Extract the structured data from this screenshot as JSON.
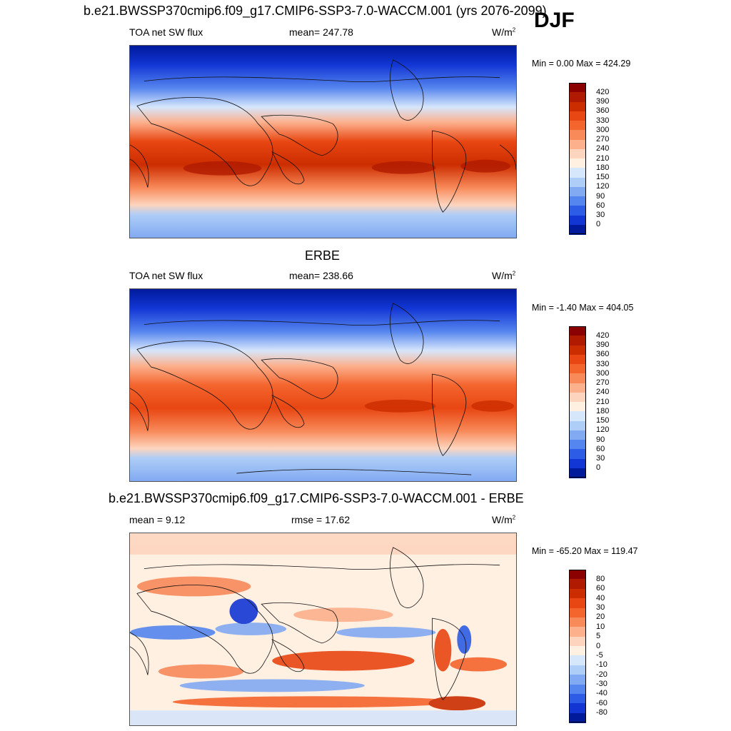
{
  "season": "DJF",
  "panel1": {
    "title": "b.e21.BWSSP370cmip6.f09_g17.CMIP6-SSP3-7.0-WACCM.001 (yrs 2076-2099)",
    "left_label": "TOA net SW flux",
    "center_label": "mean= 247.78",
    "units": "W/m",
    "units_sup": "2",
    "minmax": "Min =   0.00 Max = 424.29"
  },
  "panel2": {
    "title": "ERBE",
    "left_label": "TOA net SW flux",
    "center_label": "mean= 238.66",
    "units": "W/m",
    "units_sup": "2",
    "minmax": "Min =  -1.40 Max = 404.05"
  },
  "panel3": {
    "title": "b.e21.BWSSP370cmip6.f09_g17.CMIP6-SSP3-7.0-WACCM.001 - ERBE",
    "left_label": "mean =   9.12",
    "center_label": "rmse =  17.62",
    "units": "W/m",
    "units_sup": "2",
    "minmax": "Min = -65.20 Max = 119.47"
  },
  "colorbar_abs": {
    "ticks": [
      "420",
      "390",
      "360",
      "330",
      "300",
      "270",
      "240",
      "210",
      "180",
      "150",
      "120",
      "90",
      "60",
      "30",
      "0"
    ],
    "colors": [
      "#8b0000",
      "#b01a00",
      "#cc2d00",
      "#e84612",
      "#f4652e",
      "#f88a5a",
      "#fcb08c",
      "#fdd5bf",
      "#fff0e2",
      "#d6e6fb",
      "#aecdf7",
      "#82aaf2",
      "#5585ee",
      "#2d5ce6",
      "#1236d4",
      "#001a9c"
    ]
  },
  "colorbar_diff": {
    "ticks": [
      "80",
      "60",
      "40",
      "30",
      "20",
      "10",
      "5",
      "0",
      "-5",
      "-10",
      "-20",
      "-30",
      "-40",
      "-60",
      "-80"
    ],
    "colors": [
      "#8b0000",
      "#b01a00",
      "#cc2d00",
      "#e84612",
      "#f4652e",
      "#f88a5a",
      "#fcb08c",
      "#fdd5bf",
      "#fff0e2",
      "#d6e6fb",
      "#aecdf7",
      "#82aaf2",
      "#5585ee",
      "#2d5ce6",
      "#1236d4",
      "#001a9c"
    ]
  }
}
